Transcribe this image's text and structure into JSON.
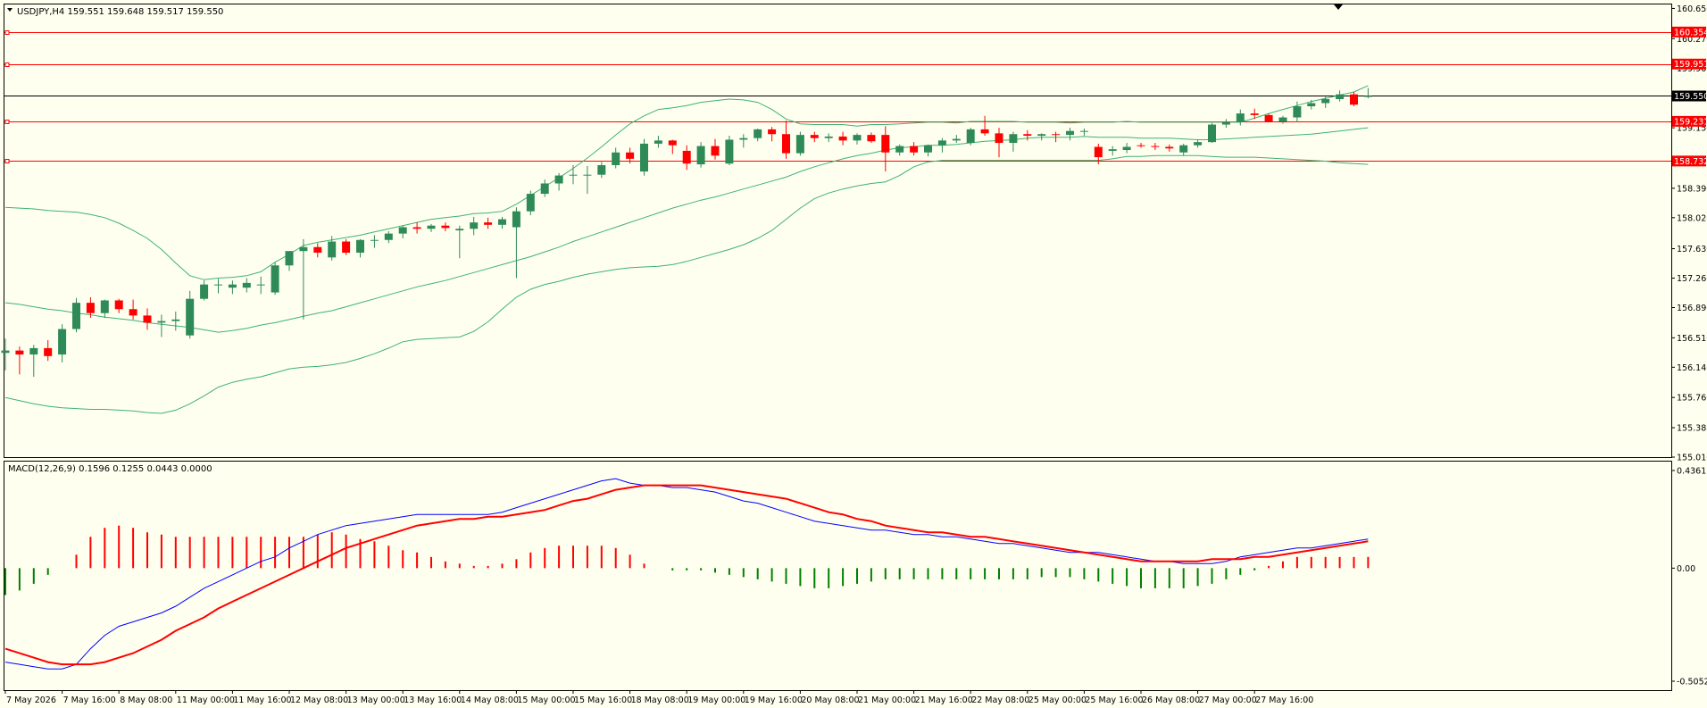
{
  "window": {
    "symbol_header": "USDJPY,H4  159.551 159.648 159.517 159.550"
  },
  "colors": {
    "background": "#fffff0",
    "bull": "#2e8b57",
    "bear": "#ff0000",
    "bands": "#3cb371",
    "level_line": "#ff0000",
    "price_line": "#000000",
    "macd_line": "#0000ff",
    "signal_line": "#ff0000",
    "hist_positive": "#ff0000",
    "hist_negative": "#008000"
  },
  "chart_data": [
    {
      "type": "candlestick",
      "title": "USDJPY,H4  159.551 159.648 159.517 159.550",
      "ylim": [
        155.01,
        160.7
      ],
      "price_ticks": [
        "160.650",
        "160.270",
        "159.900",
        "159.150",
        "158.390",
        "158.020",
        "157.630",
        "157.260",
        "156.890",
        "156.510",
        "156.140",
        "155.760",
        "155.380",
        "155.010"
      ],
      "levels": [
        {
          "label": "160.354",
          "value": 160.354
        },
        {
          "label": "159.951",
          "value": 159.951
        },
        {
          "label": "159.231",
          "value": 159.231
        },
        {
          "label": "158.732",
          "value": 158.732
        }
      ],
      "current_price": {
        "label": "159.550",
        "value": 159.55
      },
      "time_labels": [
        "7 May 2026",
        "7 May 16:00",
        "8 May 08:00",
        "11 May 00:00",
        "11 May 16:00",
        "12 May 08:00",
        "13 May 00:00",
        "13 May 16:00",
        "14 May 08:00",
        "15 May 00:00",
        "15 May 16:00",
        "18 May 08:00",
        "19 May 00:00",
        "19 May 16:00",
        "20 May 08:00",
        "21 May 00:00",
        "21 May 16:00",
        "22 May 08:00",
        "25 May 00:00",
        "25 May 16:00",
        "26 May 08:00",
        "27 May 00:00",
        "27 May 16:00"
      ],
      "candles": [
        [
          156.32,
          156.5,
          156.1,
          156.35
        ],
        [
          156.35,
          156.4,
          156.05,
          156.3
        ],
        [
          156.3,
          156.42,
          156.02,
          156.38
        ],
        [
          156.38,
          156.48,
          156.22,
          156.28
        ],
        [
          156.3,
          156.68,
          156.2,
          156.62
        ],
        [
          156.62,
          157.01,
          156.58,
          156.95
        ],
        [
          156.95,
          157.02,
          156.76,
          156.82
        ],
        [
          156.82,
          156.99,
          156.76,
          156.98
        ],
        [
          156.98,
          157.0,
          156.82,
          156.87
        ],
        [
          156.87,
          156.99,
          156.74,
          156.79
        ],
        [
          156.79,
          156.88,
          156.61,
          156.7
        ],
        [
          156.7,
          156.8,
          156.52,
          156.72
        ],
        [
          156.72,
          156.84,
          156.6,
          156.74
        ],
        [
          156.54,
          157.1,
          156.5,
          157.0
        ],
        [
          157.0,
          157.23,
          156.98,
          157.18
        ],
        [
          157.18,
          157.25,
          157.07,
          157.18
        ],
        [
          157.14,
          157.23,
          157.06,
          157.18
        ],
        [
          157.14,
          157.26,
          157.08,
          157.2
        ],
        [
          157.18,
          157.28,
          157.06,
          157.18
        ],
        [
          157.08,
          157.46,
          157.05,
          157.42
        ],
        [
          157.42,
          157.6,
          157.35,
          157.6
        ],
        [
          157.6,
          157.75,
          156.74,
          157.65
        ],
        [
          157.65,
          157.7,
          157.52,
          157.58
        ],
        [
          157.52,
          157.79,
          157.48,
          157.72
        ],
        [
          157.72,
          157.75,
          157.55,
          157.58
        ],
        [
          157.58,
          157.75,
          157.52,
          157.74
        ],
        [
          157.74,
          157.8,
          157.64,
          157.74
        ],
        [
          157.74,
          157.85,
          157.7,
          157.82
        ],
        [
          157.82,
          157.92,
          157.76,
          157.9
        ],
        [
          157.9,
          157.96,
          157.82,
          157.88
        ],
        [
          157.88,
          157.94,
          157.84,
          157.92
        ],
        [
          157.92,
          157.96,
          157.85,
          157.89
        ],
        [
          157.86,
          157.92,
          157.51,
          157.88
        ],
        [
          157.88,
          158.03,
          157.8,
          157.96
        ],
        [
          157.96,
          158.02,
          157.88,
          157.93
        ],
        [
          157.93,
          158.03,
          157.88,
          158.0
        ],
        [
          157.9,
          158.15,
          157.26,
          158.1
        ],
        [
          158.1,
          158.36,
          158.05,
          158.32
        ],
        [
          158.32,
          158.5,
          158.28,
          158.45
        ],
        [
          158.45,
          158.58,
          158.36,
          158.55
        ],
        [
          158.55,
          158.68,
          158.44,
          158.56
        ],
        [
          158.56,
          158.67,
          158.32,
          158.56
        ],
        [
          158.56,
          158.72,
          158.52,
          158.68
        ],
        [
          158.68,
          158.9,
          158.64,
          158.84
        ],
        [
          158.84,
          158.9,
          158.7,
          158.76
        ],
        [
          158.6,
          159.01,
          158.55,
          158.95
        ],
        [
          158.95,
          159.05,
          158.9,
          158.99
        ],
        [
          158.99,
          159.0,
          158.82,
          158.93
        ],
        [
          158.86,
          158.93,
          158.62,
          158.7
        ],
        [
          158.69,
          158.97,
          158.65,
          158.92
        ],
        [
          158.92,
          159.01,
          158.75,
          158.8
        ],
        [
          158.7,
          159.05,
          158.68,
          159.0
        ],
        [
          159.0,
          159.07,
          158.9,
          159.02
        ],
        [
          159.02,
          159.14,
          158.98,
          159.13
        ],
        [
          159.13,
          159.16,
          158.98,
          159.07
        ],
        [
          159.07,
          159.24,
          158.76,
          158.83
        ],
        [
          158.83,
          159.1,
          158.8,
          159.06
        ],
        [
          159.06,
          159.1,
          158.97,
          159.02
        ],
        [
          159.02,
          159.08,
          158.97,
          159.04
        ],
        [
          159.04,
          159.1,
          158.93,
          158.99
        ],
        [
          158.99,
          159.08,
          158.94,
          159.06
        ],
        [
          159.06,
          159.09,
          158.96,
          158.98
        ],
        [
          159.06,
          159.17,
          158.6,
          158.84
        ],
        [
          158.84,
          158.94,
          158.8,
          158.92
        ],
        [
          158.92,
          158.97,
          158.8,
          158.84
        ],
        [
          158.84,
          158.94,
          158.79,
          158.93
        ],
        [
          158.93,
          159.02,
          158.84,
          158.99
        ],
        [
          158.99,
          159.06,
          158.96,
          159.01
        ],
        [
          158.96,
          159.15,
          158.93,
          159.13
        ],
        [
          159.13,
          159.3,
          159.05,
          159.08
        ],
        [
          159.08,
          159.15,
          158.78,
          158.96
        ],
        [
          158.96,
          159.1,
          158.85,
          159.07
        ],
        [
          159.07,
          159.12,
          158.99,
          159.05
        ],
        [
          159.05,
          159.08,
          158.99,
          159.07
        ],
        [
          159.07,
          159.1,
          158.97,
          159.06
        ],
        [
          159.06,
          159.15,
          158.99,
          159.11
        ],
        [
          159.11,
          159.14,
          159.05,
          159.11
        ],
        [
          158.91,
          158.95,
          158.69,
          158.78
        ],
        [
          158.86,
          158.92,
          158.8,
          158.88
        ],
        [
          158.87,
          158.96,
          158.83,
          158.91
        ],
        [
          158.93,
          158.96,
          158.9,
          158.92
        ],
        [
          158.92,
          158.96,
          158.87,
          158.91
        ],
        [
          158.91,
          158.94,
          158.85,
          158.89
        ],
        [
          158.84,
          158.95,
          158.8,
          158.93
        ],
        [
          158.93,
          159.0,
          158.9,
          158.97
        ],
        [
          158.97,
          159.21,
          158.96,
          159.19
        ],
        [
          159.19,
          159.26,
          159.15,
          159.22
        ],
        [
          159.22,
          159.38,
          159.18,
          159.33
        ],
        [
          159.33,
          159.39,
          159.26,
          159.31
        ],
        [
          159.31,
          159.33,
          159.22,
          159.23
        ],
        [
          159.23,
          159.3,
          159.2,
          159.28
        ],
        [
          159.28,
          159.48,
          159.22,
          159.42
        ],
        [
          159.42,
          159.5,
          159.38,
          159.46
        ],
        [
          159.46,
          159.54,
          159.4,
          159.51
        ],
        [
          159.51,
          159.62,
          159.48,
          159.57
        ],
        [
          159.57,
          159.6,
          159.42,
          159.44
        ],
        [
          159.55,
          159.65,
          159.52,
          159.55
        ]
      ],
      "bands_upper": [
        158.15,
        158.14,
        158.13,
        158.11,
        158.1,
        158.09,
        158.06,
        158.02,
        157.95,
        157.86,
        157.76,
        157.62,
        157.45,
        157.29,
        157.24,
        157.26,
        157.27,
        157.29,
        157.34,
        157.46,
        157.56,
        157.67,
        157.71,
        157.74,
        157.77,
        157.8,
        157.84,
        157.88,
        157.92,
        157.96,
        158.0,
        158.02,
        158.04,
        158.07,
        158.08,
        158.1,
        158.19,
        158.3,
        158.41,
        158.52,
        158.64,
        158.77,
        158.91,
        159.06,
        159.2,
        159.3,
        159.38,
        159.4,
        159.43,
        159.47,
        159.49,
        159.51,
        159.5,
        159.47,
        159.38,
        159.26,
        159.2,
        159.19,
        159.19,
        159.19,
        159.17,
        159.19,
        159.19,
        159.2,
        159.21,
        159.22,
        159.22,
        159.21,
        159.23,
        159.23,
        159.23,
        159.23,
        159.22,
        159.22,
        159.22,
        159.21,
        159.22,
        159.22,
        159.22,
        159.23,
        159.22,
        159.22,
        159.22,
        159.22,
        159.22,
        159.22,
        159.22,
        159.22,
        159.27,
        159.33,
        159.38,
        159.43,
        159.48,
        159.52,
        159.56,
        159.6,
        159.68
      ],
      "bands_middle": [
        156.95,
        156.93,
        156.9,
        156.87,
        156.85,
        156.82,
        156.8,
        156.77,
        156.75,
        156.73,
        156.7,
        156.68,
        156.66,
        156.64,
        156.61,
        156.58,
        156.6,
        156.63,
        156.67,
        156.7,
        156.74,
        156.78,
        156.82,
        156.85,
        156.9,
        156.95,
        157.0,
        157.05,
        157.1,
        157.15,
        157.19,
        157.23,
        157.28,
        157.33,
        157.38,
        157.43,
        157.48,
        157.53,
        157.59,
        157.65,
        157.72,
        157.78,
        157.84,
        157.9,
        157.96,
        158.02,
        158.08,
        158.14,
        158.19,
        158.24,
        158.28,
        158.33,
        158.38,
        158.43,
        158.48,
        158.53,
        158.6,
        158.66,
        158.71,
        158.76,
        158.8,
        158.83,
        158.87,
        158.9,
        158.91,
        158.93,
        158.93,
        158.94,
        158.96,
        158.98,
        158.99,
        159.0,
        159.02,
        159.03,
        159.03,
        159.03,
        159.04,
        159.03,
        159.03,
        159.03,
        159.02,
        159.02,
        159.02,
        159.01,
        159.0,
        159.0,
        159.01,
        159.02,
        159.03,
        159.04,
        159.05,
        159.06,
        159.07,
        159.09,
        159.11,
        159.13,
        159.15
      ],
      "bands_lower": [
        155.76,
        155.72,
        155.68,
        155.65,
        155.63,
        155.62,
        155.61,
        155.61,
        155.6,
        155.59,
        155.57,
        155.56,
        155.6,
        155.68,
        155.78,
        155.89,
        155.95,
        155.99,
        156.02,
        156.07,
        156.12,
        156.14,
        156.15,
        156.17,
        156.2,
        156.25,
        156.31,
        156.38,
        156.46,
        156.49,
        156.5,
        156.51,
        156.52,
        156.59,
        156.71,
        156.87,
        157.02,
        157.12,
        157.18,
        157.22,
        157.27,
        157.31,
        157.34,
        157.37,
        157.39,
        157.4,
        157.41,
        157.43,
        157.47,
        157.52,
        157.57,
        157.62,
        157.68,
        157.76,
        157.86,
        158.0,
        158.14,
        158.26,
        158.33,
        158.38,
        158.42,
        158.45,
        158.47,
        158.55,
        158.66,
        158.72,
        158.74,
        158.74,
        158.74,
        158.74,
        158.74,
        158.74,
        158.74,
        158.74,
        158.74,
        158.74,
        158.74,
        158.74,
        158.76,
        158.79,
        158.79,
        158.8,
        158.8,
        158.8,
        158.8,
        158.79,
        158.78,
        158.78,
        158.78,
        158.77,
        158.76,
        158.75,
        158.74,
        158.73,
        158.71,
        158.7,
        158.69
      ]
    },
    {
      "type": "macd",
      "title": "MACD(12,26,9) 0.1596 0.1255 0.0443 0.0000",
      "ylim": [
        -0.5052,
        0.4361
      ],
      "ticks": [
        "0.4361",
        "0.00",
        "-0.5052"
      ],
      "macd": [
        -0.42,
        -0.43,
        -0.44,
        -0.45,
        -0.45,
        -0.43,
        -0.36,
        -0.3,
        -0.26,
        -0.24,
        -0.22,
        -0.2,
        -0.17,
        -0.13,
        -0.09,
        -0.06,
        -0.03,
        0.0,
        0.03,
        0.05,
        0.09,
        0.12,
        0.15,
        0.17,
        0.19,
        0.2,
        0.21,
        0.22,
        0.23,
        0.24,
        0.24,
        0.24,
        0.24,
        0.24,
        0.24,
        0.25,
        0.27,
        0.29,
        0.31,
        0.33,
        0.35,
        0.37,
        0.39,
        0.4,
        0.38,
        0.37,
        0.37,
        0.36,
        0.36,
        0.35,
        0.34,
        0.32,
        0.3,
        0.29,
        0.27,
        0.25,
        0.23,
        0.21,
        0.2,
        0.19,
        0.18,
        0.17,
        0.17,
        0.16,
        0.15,
        0.15,
        0.14,
        0.14,
        0.13,
        0.12,
        0.11,
        0.11,
        0.1,
        0.09,
        0.08,
        0.07,
        0.07,
        0.07,
        0.06,
        0.05,
        0.04,
        0.03,
        0.03,
        0.02,
        0.02,
        0.02,
        0.03,
        0.05,
        0.06,
        0.07,
        0.08,
        0.09,
        0.09,
        0.1,
        0.11,
        0.12,
        0.13
      ],
      "signal": [
        -0.36,
        -0.38,
        -0.4,
        -0.42,
        -0.43,
        -0.43,
        -0.43,
        -0.42,
        -0.4,
        -0.38,
        -0.35,
        -0.32,
        -0.28,
        -0.25,
        -0.22,
        -0.18,
        -0.15,
        -0.12,
        -0.09,
        -0.06,
        -0.03,
        0.0,
        0.03,
        0.06,
        0.09,
        0.11,
        0.13,
        0.15,
        0.17,
        0.19,
        0.2,
        0.21,
        0.22,
        0.22,
        0.23,
        0.23,
        0.24,
        0.25,
        0.26,
        0.28,
        0.3,
        0.31,
        0.33,
        0.35,
        0.36,
        0.37,
        0.37,
        0.37,
        0.37,
        0.37,
        0.36,
        0.35,
        0.34,
        0.33,
        0.32,
        0.31,
        0.29,
        0.27,
        0.25,
        0.24,
        0.22,
        0.21,
        0.19,
        0.18,
        0.17,
        0.16,
        0.16,
        0.15,
        0.14,
        0.14,
        0.13,
        0.12,
        0.11,
        0.1,
        0.09,
        0.08,
        0.07,
        0.06,
        0.05,
        0.04,
        0.03,
        0.03,
        0.03,
        0.03,
        0.03,
        0.04,
        0.04,
        0.04,
        0.05,
        0.05,
        0.06,
        0.07,
        0.08,
        0.09,
        0.1,
        0.11,
        0.12
      ],
      "histogram": [
        -0.12,
        -0.1,
        -0.07,
        -0.03,
        0.0,
        0.06,
        0.14,
        0.18,
        0.19,
        0.18,
        0.16,
        0.15,
        0.14,
        0.14,
        0.14,
        0.14,
        0.14,
        0.14,
        0.14,
        0.14,
        0.14,
        0.14,
        0.15,
        0.16,
        0.15,
        0.13,
        0.12,
        0.1,
        0.08,
        0.07,
        0.05,
        0.03,
        0.02,
        0.01,
        0.01,
        0.02,
        0.04,
        0.07,
        0.09,
        0.1,
        0.1,
        0.1,
        0.1,
        0.09,
        0.06,
        0.02,
        0.0,
        -0.01,
        -0.01,
        -0.01,
        -0.02,
        -0.03,
        -0.04,
        -0.05,
        -0.06,
        -0.07,
        -0.08,
        -0.09,
        -0.09,
        -0.08,
        -0.07,
        -0.06,
        -0.05,
        -0.05,
        -0.05,
        -0.05,
        -0.05,
        -0.05,
        -0.05,
        -0.05,
        -0.05,
        -0.05,
        -0.05,
        -0.04,
        -0.04,
        -0.04,
        -0.05,
        -0.06,
        -0.07,
        -0.08,
        -0.09,
        -0.09,
        -0.09,
        -0.09,
        -0.08,
        -0.07,
        -0.05,
        -0.03,
        -0.01,
        0.01,
        0.03,
        0.05,
        0.05,
        0.05,
        0.05,
        0.05,
        0.05
      ]
    }
  ]
}
